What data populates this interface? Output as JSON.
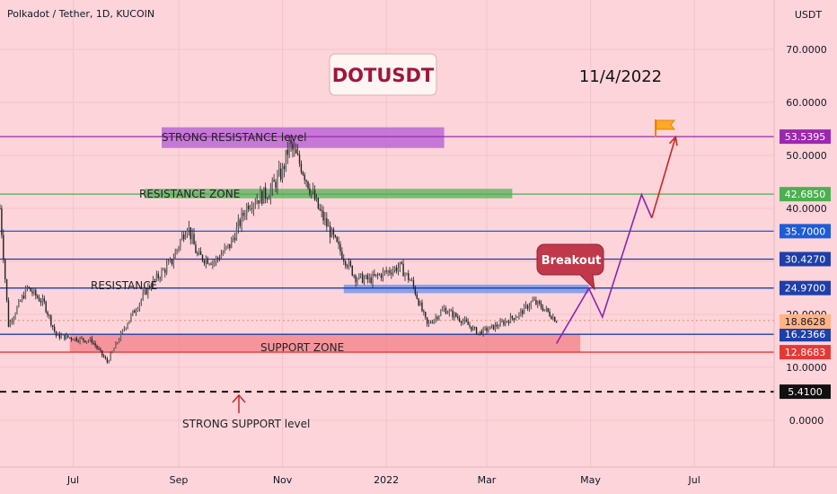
{
  "header": {
    "symbol_info": "Polkadot / Tether, 1D, KUCOIN",
    "currency": "USDT"
  },
  "annotations": {
    "title": "DOTUSDT",
    "date": "11/4/2022",
    "strong_resistance_label": "STRONG RESISTANCE level",
    "resistance_zone_label": "RESISTANCE ZONE",
    "resistance_label": "RESISTANCE",
    "support_zone_label": "SUPPORT ZONE",
    "strong_support_label": "STRONG SUPPORT level",
    "breakout_label": "Breakout"
  },
  "colors": {
    "background": "#fcd4da",
    "candle": "#222222",
    "purple": "#9c27b0",
    "green": "#4caf50",
    "blue": "#1e5bd6",
    "red": "#e53935",
    "projection": "#7b1fa2",
    "title_text": "#a0153e"
  },
  "chart_data": {
    "type": "candlestick",
    "title": "DOTUSDT",
    "x_tick_labels": [
      "Jul",
      "Sep",
      "Nov",
      "2022",
      "Mar",
      "May",
      "Jul"
    ],
    "x_range": [
      "2021-05-19",
      "2022-07-31"
    ],
    "y_tick_labels": [
      "70.0000",
      "60.0000",
      "50.0000",
      "40.0000",
      "30.0000",
      "20.0000",
      "10.0000",
      "0.0000"
    ],
    "y_ticks": [
      70,
      60,
      50,
      40,
      30,
      20,
      10,
      0
    ],
    "ylim": [
      -5,
      80
    ],
    "current_price": "18.8628",
    "levels": [
      {
        "label": "53.5395",
        "value": 53.5395,
        "color": "#9c27b0",
        "style": "solid"
      },
      {
        "label": "42.6850",
        "value": 42.685,
        "color": "#4caf50",
        "style": "solid"
      },
      {
        "label": "35.7000",
        "value": 35.7,
        "color": "#1e5bd6",
        "style": "solid"
      },
      {
        "label": "30.4270",
        "value": 30.427,
        "color": "#1e3fa8",
        "style": "solid"
      },
      {
        "label": "24.9700",
        "value": 24.97,
        "color": "#1e3fa8",
        "style": "solid"
      },
      {
        "label": "16.2366",
        "value": 16.2366,
        "color": "#1e3fa8",
        "style": "solid"
      },
      {
        "label": "12.8683",
        "value": 12.8683,
        "color": "#e53935",
        "style": "solid"
      },
      {
        "label": "5.4100",
        "value": 5.41,
        "color": "#111111",
        "style": "dashed"
      }
    ],
    "price_path": [
      [
        "2021-05-19",
        40
      ],
      [
        "2021-05-24",
        18
      ],
      [
        "2021-06-04",
        25
      ],
      [
        "2021-06-14",
        22
      ],
      [
        "2021-06-21",
        16
      ],
      [
        "2021-07-01",
        15.5
      ],
      [
        "2021-07-12",
        15
      ],
      [
        "2021-07-21",
        11
      ],
      [
        "2021-08-01",
        18
      ],
      [
        "2021-08-14",
        25
      ],
      [
        "2021-08-28",
        30
      ],
      [
        "2021-09-06",
        37
      ],
      [
        "2021-09-12",
        31
      ],
      [
        "2021-09-22",
        30
      ],
      [
        "2021-10-01",
        33
      ],
      [
        "2021-10-12",
        41
      ],
      [
        "2021-10-24",
        43
      ],
      [
        "2021-11-01",
        47
      ],
      [
        "2021-11-05",
        52
      ],
      [
        "2021-11-12",
        48
      ],
      [
        "2021-11-22",
        40
      ],
      [
        "2021-12-03",
        33
      ],
      [
        "2021-12-14",
        27
      ],
      [
        "2021-12-22",
        26.5
      ],
      [
        "2022-01-01",
        28
      ],
      [
        "2022-01-09",
        29
      ],
      [
        "2022-01-16",
        26
      ],
      [
        "2022-01-25",
        18
      ],
      [
        "2022-02-04",
        21
      ],
      [
        "2022-02-14",
        19
      ],
      [
        "2022-02-24",
        16.5
      ],
      [
        "2022-03-08",
        18
      ],
      [
        "2022-03-20",
        20
      ],
      [
        "2022-03-28",
        22.5
      ],
      [
        "2022-04-04",
        21
      ],
      [
        "2022-04-11",
        18.86
      ]
    ],
    "projection_path": [
      [
        "2022-04-11",
        14.5
      ],
      [
        "2022-04-30",
        24.9
      ],
      [
        "2022-05-08",
        19.5
      ],
      [
        "2022-05-31",
        42.6
      ],
      [
        "2022-06-06",
        38.2
      ],
      [
        "2022-06-20",
        53.5
      ]
    ]
  }
}
